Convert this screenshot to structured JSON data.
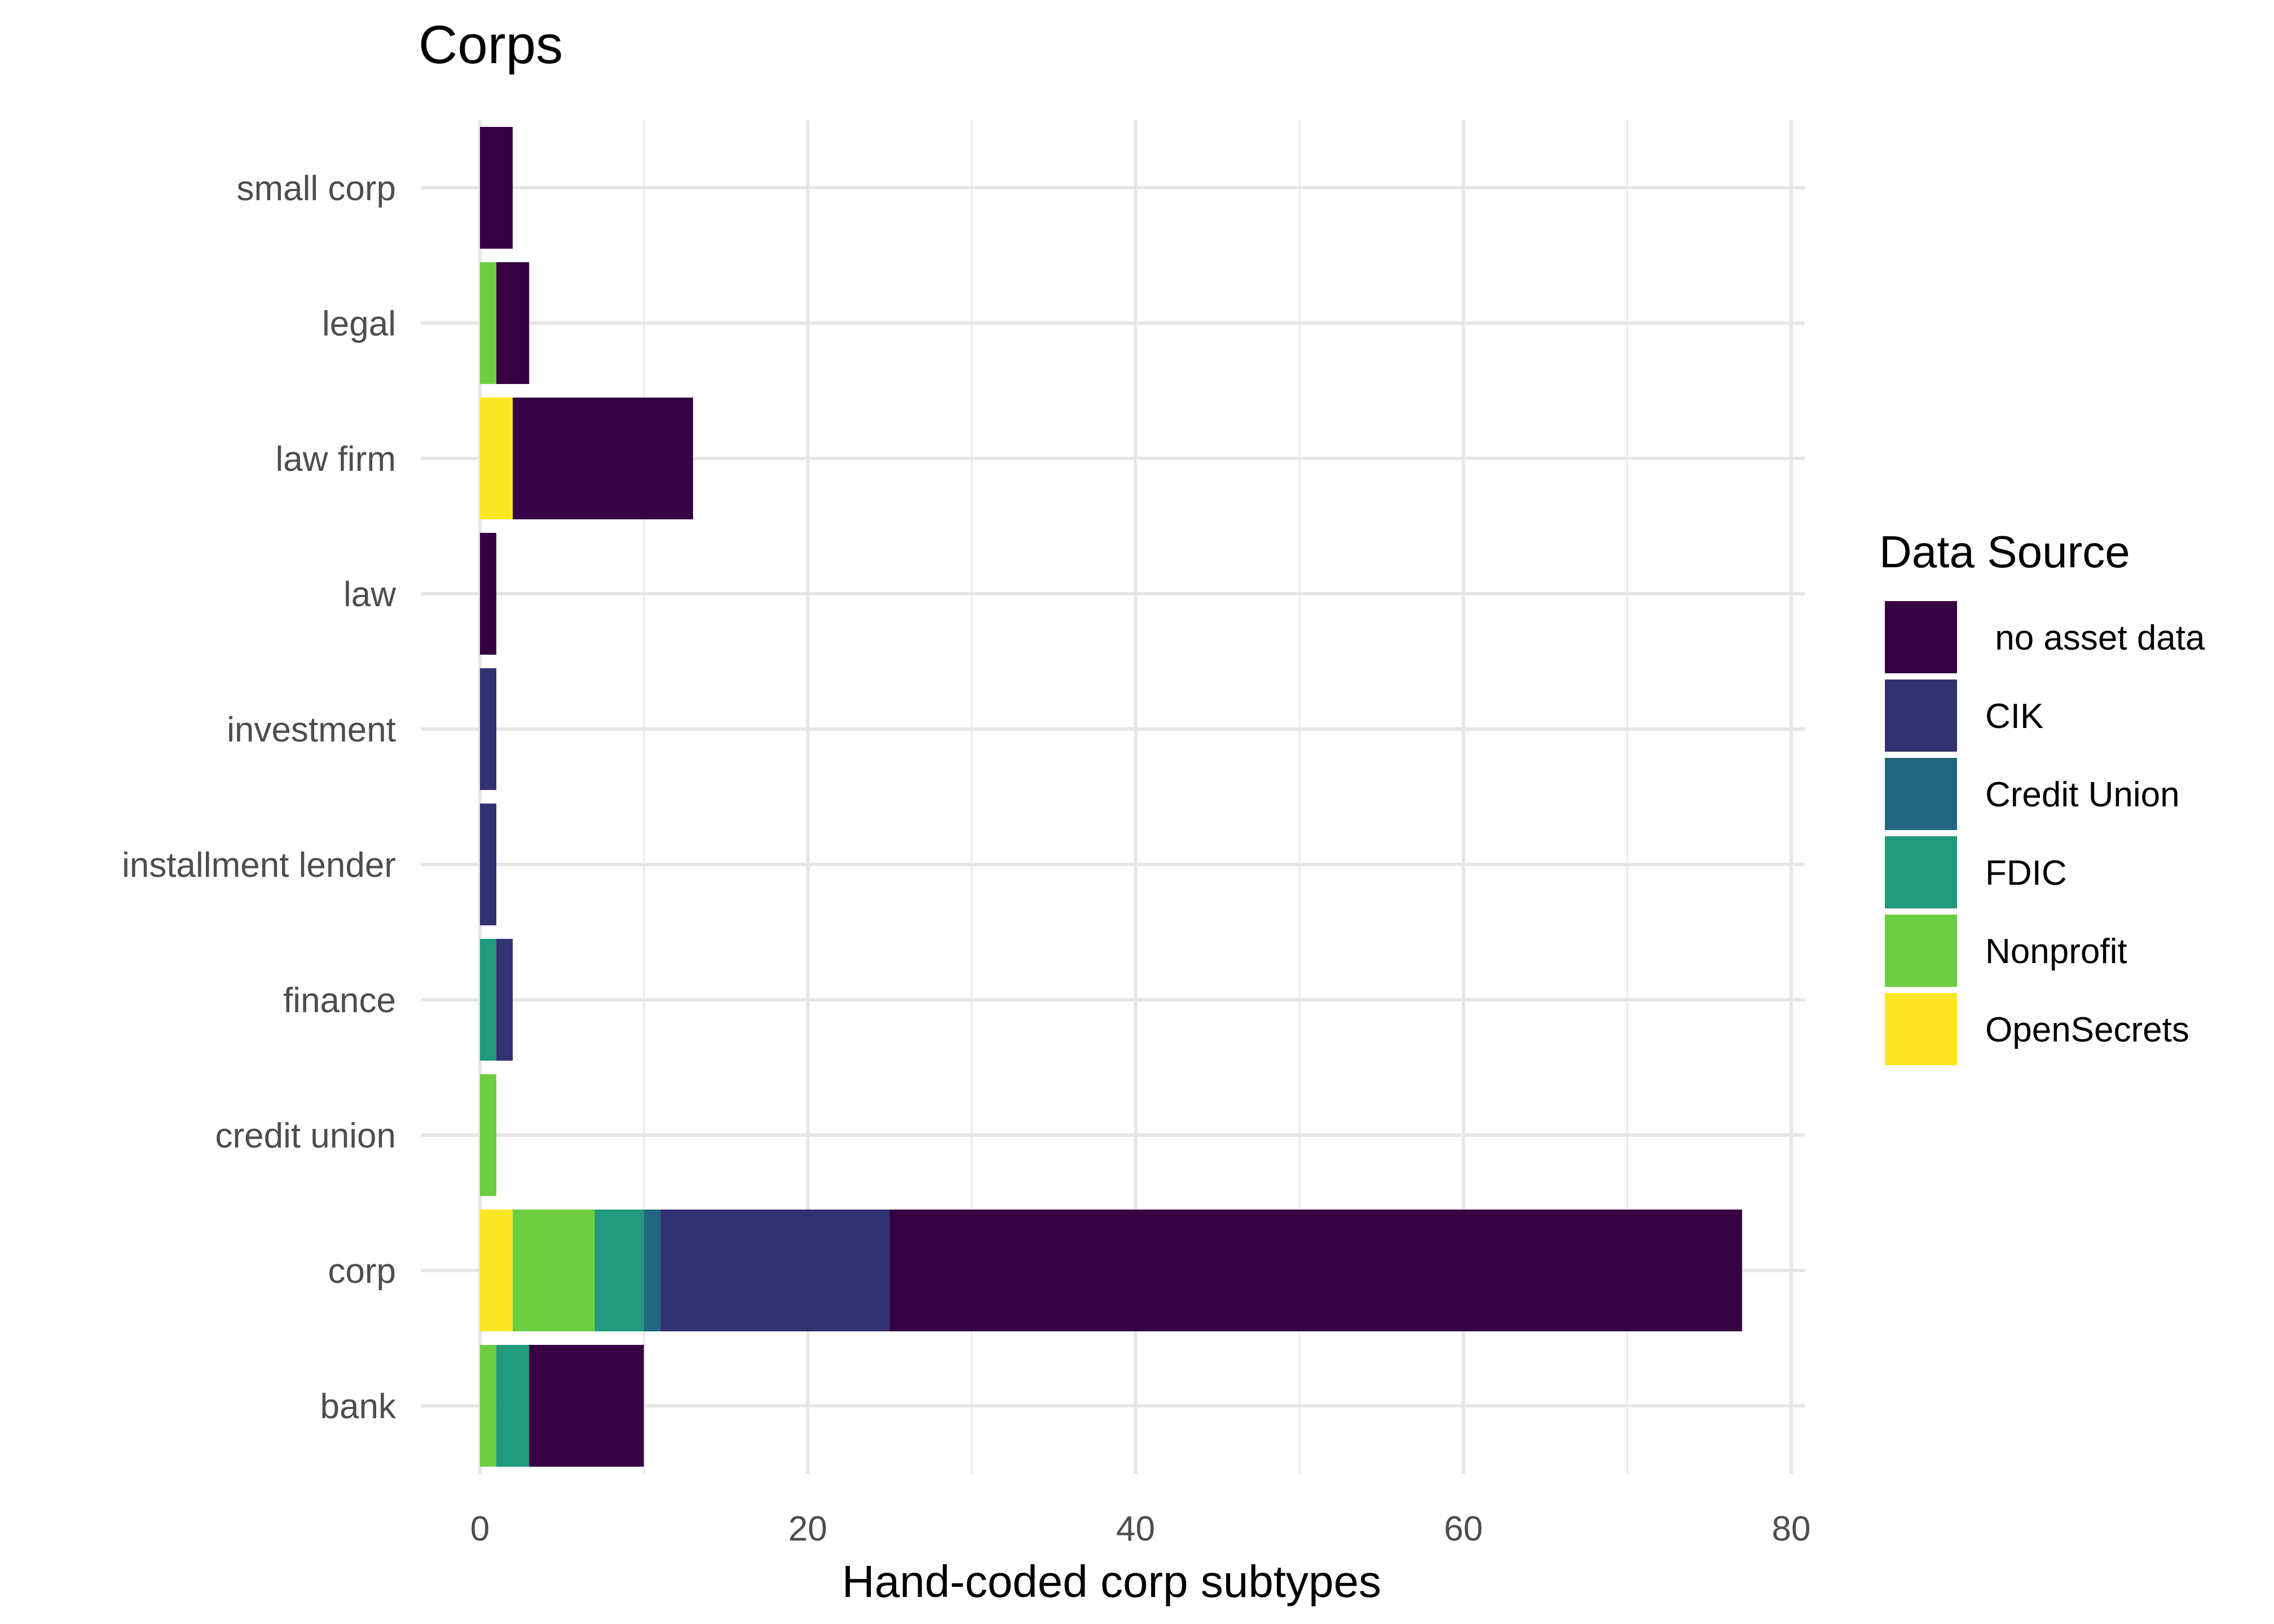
{
  "chart_data": {
    "type": "bar",
    "orientation": "horizontal",
    "stacked": true,
    "title": "Corps",
    "xlabel": "Hand-coded corp subtypes",
    "ylabel": "",
    "xlim": [
      0,
      80
    ],
    "x_ticks": [
      0,
      20,
      40,
      60,
      80
    ],
    "grid": true,
    "legend_position": "right",
    "legend_title": "Data Source",
    "categories": [
      "bank",
      "corp",
      "credit union",
      "finance",
      "installment lender",
      "investment",
      "law",
      "law firm",
      "legal",
      "small corp"
    ],
    "series": [
      {
        "name": "OpenSecrets",
        "color": "#FDE725",
        "values": [
          0,
          2,
          0,
          0,
          0,
          0,
          0,
          2,
          0,
          0
        ]
      },
      {
        "name": "Nonprofit",
        "color": "#6DCD41",
        "values": [
          1,
          5,
          1,
          0,
          0,
          0,
          0,
          0,
          1,
          0
        ]
      },
      {
        "name": "FDIC",
        "color": "#21997B",
        "values": [
          2,
          3,
          0,
          1,
          0,
          0,
          0,
          0,
          0,
          0
        ]
      },
      {
        "name": "Credit Union",
        "color": "#21677F",
        "values": [
          0,
          1,
          0,
          0,
          0,
          0,
          0,
          0,
          0,
          0
        ]
      },
      {
        "name": "CIK",
        "color": "#333270",
        "values": [
          0,
          14,
          0,
          1,
          1,
          1,
          0,
          0,
          0,
          0
        ]
      },
      {
        "name": " no asset data",
        "color": "#360042",
        "values": [
          7,
          52,
          0,
          0,
          0,
          0,
          1,
          11,
          2,
          2
        ]
      }
    ],
    "legend_order": [
      " no asset data",
      "CIK",
      "Credit Union",
      "FDIC",
      "Nonprofit",
      "OpenSecrets"
    ]
  }
}
